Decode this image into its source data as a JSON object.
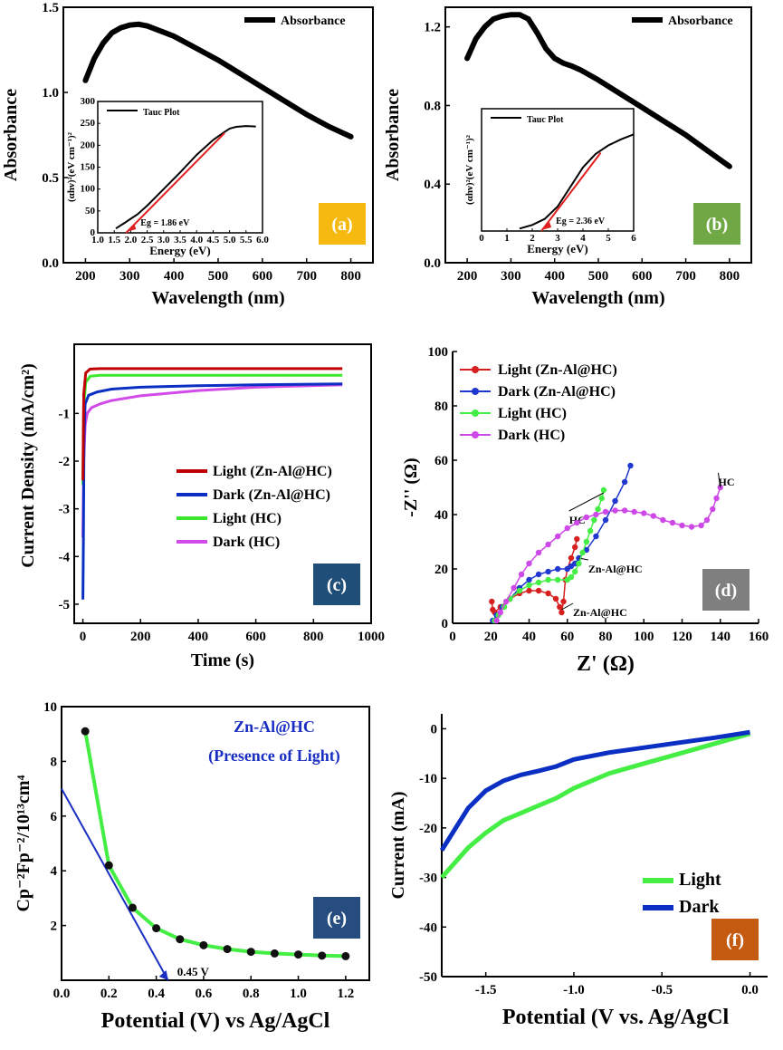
{
  "chart_data": [
    {
      "id": "a",
      "type": "line",
      "panel_label": "(a)",
      "panel_color": "#F5B90F",
      "xlabel": "Wavelength (nm)",
      "ylabel": "Absorbance",
      "xlim": [
        150,
        850
      ],
      "ylim": [
        0.0,
        1.5
      ],
      "xticks": [
        200,
        300,
        400,
        500,
        600,
        700,
        800
      ],
      "yticks": [
        0.0,
        0.5,
        1.0,
        1.5
      ],
      "ytick_labels": [
        "0.0",
        "0.5",
        "1.0",
        "1.5"
      ],
      "series": [
        {
          "name": "Absorbance",
          "color": "#000000",
          "x": [
            200,
            220,
            240,
            260,
            280,
            300,
            320,
            340,
            360,
            380,
            400,
            450,
            500,
            550,
            600,
            650,
            700,
            750,
            800
          ],
          "y": [
            1.07,
            1.2,
            1.29,
            1.35,
            1.38,
            1.395,
            1.4,
            1.39,
            1.37,
            1.35,
            1.33,
            1.26,
            1.19,
            1.11,
            1.03,
            0.95,
            0.87,
            0.8,
            0.74
          ]
        }
      ],
      "inset": {
        "xlabel": "Energy (eV)",
        "ylabel": "(αhν)²(eV cm⁻¹)²",
        "xlim": [
          1.0,
          6.0
        ],
        "ylim": [
          0,
          300
        ],
        "xticks": [
          1.0,
          1.5,
          2.0,
          2.5,
          3.0,
          3.5,
          4.0,
          4.5,
          5.0,
          5.5,
          6.0
        ],
        "xtick_labels": [
          "1.0",
          "1.5",
          "2.0",
          "2.5",
          "3.0",
          "3.5",
          "4.0",
          "4.5",
          "5.0",
          "5.5",
          "6.0"
        ],
        "yticks": [
          0,
          50,
          100,
          150,
          200,
          250,
          300
        ],
        "legend": "Tauc Plot",
        "annotation": "Eg = 1.86 eV",
        "curve": {
          "x": [
            1.55,
            1.8,
            2.0,
            2.2,
            2.5,
            3.0,
            3.5,
            4.0,
            4.5,
            4.8,
            5.0,
            5.2,
            5.5,
            5.8
          ],
          "y": [
            10,
            22,
            32,
            42,
            62,
            100,
            138,
            178,
            212,
            228,
            238,
            242,
            244,
            243
          ]
        },
        "fit": {
          "x": [
            1.86,
            4.85
          ],
          "y": [
            0,
            228
          ]
        }
      }
    },
    {
      "id": "b",
      "type": "line",
      "panel_label": "(b)",
      "panel_color": "#70A845",
      "xlabel": "Wavelength (nm)",
      "ylabel": "Absorbance",
      "xlim": [
        150,
        850
      ],
      "ylim": [
        0.0,
        1.3
      ],
      "xticks": [
        200,
        300,
        400,
        500,
        600,
        700,
        800
      ],
      "yticks": [
        0.0,
        0.4,
        0.8,
        1.2
      ],
      "ytick_labels": [
        "0.0",
        "0.4",
        "0.8",
        "1.2"
      ],
      "series": [
        {
          "name": "Absorbance",
          "color": "#000000",
          "x": [
            200,
            220,
            240,
            260,
            280,
            300,
            320,
            340,
            360,
            380,
            400,
            420,
            440,
            460,
            500,
            550,
            600,
            650,
            700,
            750,
            800
          ],
          "y": [
            1.04,
            1.14,
            1.2,
            1.24,
            1.255,
            1.262,
            1.262,
            1.24,
            1.17,
            1.09,
            1.04,
            1.015,
            1.0,
            0.98,
            0.93,
            0.86,
            0.79,
            0.72,
            0.65,
            0.57,
            0.49
          ]
        }
      ],
      "inset": {
        "xlabel": "Energy (eV)",
        "ylabel": "(αhν)²(eV cm⁻¹)²",
        "xlim": [
          0,
          6
        ],
        "ylim": [
          0,
          1.0
        ],
        "xticks": [
          0,
          1,
          2,
          3,
          4,
          5,
          6
        ],
        "yticks": [],
        "legend": "Tauc Plot",
        "annotation": "Eg = 2.36 eV",
        "curve": {
          "x": [
            1.5,
            2.0,
            2.5,
            3.0,
            3.5,
            4.0,
            4.5,
            5.0,
            5.5,
            6.0
          ],
          "y": [
            0.02,
            0.05,
            0.1,
            0.2,
            0.36,
            0.52,
            0.63,
            0.7,
            0.75,
            0.79
          ]
        },
        "fit": {
          "x": [
            2.36,
            4.7
          ],
          "y": [
            0,
            0.64
          ]
        }
      }
    },
    {
      "id": "c",
      "type": "line",
      "panel_label": "(c)",
      "panel_color": "#1F4E79",
      "xlabel": "Time (s)",
      "ylabel": "Current Density (mA/cm²)",
      "xlim": [
        -30,
        1000
      ],
      "ylim": [
        -5.4,
        0.45
      ],
      "xticks": [
        0,
        200,
        400,
        600,
        800,
        1000
      ],
      "yticks": [
        -5,
        -4,
        -3,
        -2,
        -1
      ],
      "series": [
        {
          "name": "Light (Zn-Al@HC)",
          "color": "#C00000",
          "x": [
            0,
            3,
            10,
            25,
            60,
            150,
            400,
            900
          ],
          "y": [
            -2.4,
            -0.6,
            -0.15,
            -0.07,
            -0.06,
            -0.06,
            -0.06,
            -0.06
          ]
        },
        {
          "name": "Dark (Zn-Al@HC)",
          "color": "#0B2FC2",
          "x": [
            0,
            2,
            4,
            8,
            20,
            50,
            100,
            200,
            400,
            600,
            900
          ],
          "y": [
            -4.9,
            -3.5,
            -1.5,
            -0.8,
            -0.62,
            -0.55,
            -0.49,
            -0.45,
            -0.42,
            -0.4,
            -0.38
          ]
        },
        {
          "name": "Light (HC)",
          "color": "#3CE62C",
          "x": [
            0,
            3,
            10,
            25,
            60,
            150,
            400,
            900
          ],
          "y": [
            -2.5,
            -0.9,
            -0.35,
            -0.22,
            -0.2,
            -0.2,
            -0.2,
            -0.2
          ]
        },
        {
          "name": "Dark (HC)",
          "color": "#D24AE8",
          "x": [
            0,
            3,
            8,
            15,
            30,
            60,
            100,
            200,
            400,
            600,
            900
          ],
          "y": [
            -3.6,
            -2.0,
            -1.25,
            -1.0,
            -0.88,
            -0.8,
            -0.73,
            -0.63,
            -0.52,
            -0.45,
            -0.4
          ]
        }
      ]
    },
    {
      "id": "d",
      "type": "scatter",
      "panel_label": "(d)",
      "panel_color": "#7F7F7F",
      "xlabel": "Z' (Ω)",
      "ylabel": "-Z'' (Ω)",
      "xlim": [
        0,
        160
      ],
      "ylim": [
        0,
        100
      ],
      "xticks": [
        0,
        20,
        40,
        60,
        80,
        100,
        120,
        140,
        160
      ],
      "yticks": [
        0,
        20,
        40,
        60,
        80,
        100
      ],
      "series": [
        {
          "name": "Light (Zn-Al@HC)",
          "color": "#D62020",
          "x": [
            20.5,
            21,
            22,
            25,
            30,
            35,
            40,
            45,
            50,
            54,
            56,
            57,
            58,
            59,
            60,
            62,
            64,
            65
          ],
          "y": [
            8,
            5,
            4,
            6,
            9,
            11,
            12,
            12,
            11,
            9,
            6,
            4,
            8,
            16,
            20,
            24,
            28,
            31
          ],
          "label_text": "Zn-Al@HC"
        },
        {
          "name": "Dark (Zn-Al@HC)",
          "color": "#1F39D0",
          "x": [
            21,
            23,
            26,
            30,
            35,
            40,
            45,
            50,
            55,
            60,
            62,
            64,
            66,
            70,
            75,
            80,
            85,
            90,
            93
          ],
          "y": [
            1,
            3,
            6,
            9,
            13,
            16,
            18,
            19,
            20,
            20,
            21,
            22,
            24,
            27,
            32,
            38,
            45,
            52,
            58
          ],
          "label_text": "Zn-Al@HC"
        },
        {
          "name": "Light (HC)",
          "color": "#44EE44",
          "x": [
            22,
            24,
            27,
            30,
            35,
            40,
            45,
            50,
            55,
            60,
            62,
            64,
            66,
            68,
            70,
            72,
            74,
            76,
            78,
            79
          ],
          "y": [
            1,
            3,
            6,
            9,
            12,
            14,
            15,
            16,
            16,
            16,
            17,
            19,
            22,
            26,
            30,
            34,
            38,
            42,
            46,
            49
          ],
          "label_text": "HC"
        },
        {
          "name": "Dark (HC)",
          "color": "#CE48E8",
          "x": [
            23,
            25,
            28,
            32,
            36,
            40,
            45,
            50,
            55,
            60,
            65,
            70,
            75,
            80,
            85,
            90,
            95,
            100,
            105,
            110,
            115,
            120,
            125,
            130,
            133,
            136,
            138,
            140
          ],
          "y": [
            1,
            4,
            8,
            13,
            18,
            22,
            26,
            29,
            32,
            35,
            37,
            39,
            40,
            41,
            41.5,
            41.5,
            41,
            40.5,
            39.5,
            38,
            37,
            36,
            35.5,
            36,
            38,
            42,
            46,
            50
          ],
          "label_text": "HC"
        }
      ]
    },
    {
      "id": "e",
      "type": "line",
      "panel_label": "(e)",
      "panel_color": "#264C80",
      "title": "Zn-Al@HC",
      "subtitle": "(Presence of Light)",
      "xlabel": "Potential (V) vs Ag/AgCl",
      "ylabel": "Cp⁻²Fp⁻²/10¹³cm⁴",
      "xlim": [
        0.0,
        1.3
      ],
      "ylim": [
        0,
        10
      ],
      "xticks": [
        0.0,
        0.2,
        0.4,
        0.6,
        0.8,
        1.0,
        1.2
      ],
      "xtick_labels": [
        "0.0",
        "0.2",
        "0.4",
        "0.6",
        "0.8",
        "1.0",
        "1.2"
      ],
      "yticks": [
        2,
        4,
        6,
        8,
        10
      ],
      "series": [
        {
          "name": "",
          "color": "#44EE44",
          "x": [
            0.1,
            0.2,
            0.3,
            0.4,
            0.5,
            0.6,
            0.7,
            0.8,
            0.9,
            1.0,
            1.1,
            1.2
          ],
          "y": [
            9.1,
            4.2,
            2.65,
            1.9,
            1.5,
            1.28,
            1.14,
            1.04,
            0.98,
            0.94,
            0.9,
            0.88
          ]
        }
      ],
      "fit_line": {
        "x": [
          0.0,
          0.45
        ],
        "y": [
          7.0,
          0.0
        ]
      },
      "annotation": "0.45 V"
    },
    {
      "id": "f",
      "type": "line",
      "panel_label": "(f)",
      "panel_color": "#C55A11",
      "xlabel": "Potential (V vs. Ag/AgCl",
      "ylabel": "Current (mA)",
      "xlim": [
        -1.75,
        0.1
      ],
      "ylim": [
        -50,
        3
      ],
      "xticks": [
        -1.5,
        -1.0,
        -0.5,
        0.0
      ],
      "xtick_labels": [
        "-1.5",
        "-1.0",
        "-0.5",
        "0.0"
      ],
      "yticks": [
        -50,
        -40,
        -30,
        -20,
        -10,
        0
      ],
      "series": [
        {
          "name": "Light",
          "color": "#44EE44",
          "x": [
            -1.75,
            -1.6,
            -1.5,
            -1.4,
            -1.3,
            -1.2,
            -1.1,
            -1.0,
            -0.8,
            -0.6,
            -0.4,
            -0.2,
            0.0
          ],
          "y": [
            -30,
            -24,
            -21,
            -18.5,
            -17,
            -15.5,
            -14,
            -12,
            -9,
            -7,
            -5,
            -3,
            -1
          ]
        },
        {
          "name": "Dark",
          "color": "#0B2FC2",
          "x": [
            -1.75,
            -1.6,
            -1.5,
            -1.4,
            -1.3,
            -1.2,
            -1.1,
            -1.0,
            -0.8,
            -0.6,
            -0.4,
            -0.2,
            0.0
          ],
          "y": [
            -24.5,
            -16,
            -12.5,
            -10.5,
            -9.3,
            -8.5,
            -7.6,
            -6.2,
            -4.8,
            -3.8,
            -2.8,
            -1.8,
            -0.7
          ]
        }
      ]
    }
  ]
}
